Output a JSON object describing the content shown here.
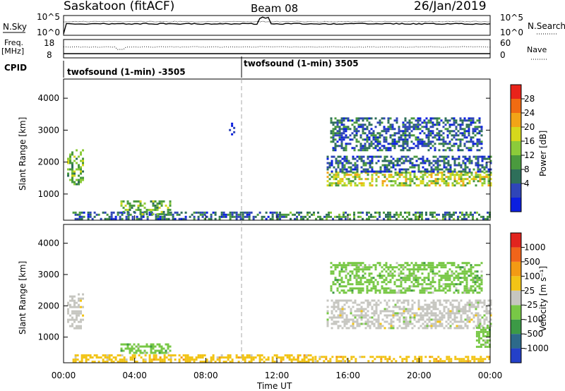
{
  "header": {
    "title": "Saskatoon (fitACF)",
    "beam": "Beam 08",
    "date": "26/Jan/2019"
  },
  "labels": {
    "nsky": "N.Sky",
    "nsearch": "N.Search",
    "freq": "Freq.",
    "freq_unit": "[MHz]",
    "nave": "Nave",
    "cpid": "CPID",
    "cpid1": "twofsound (1-min) -3505",
    "cpid2": "twofsound (1-min) 3505",
    "ylabel": "Slant Range [km]",
    "xlabel": "Time UT",
    "nsky_ticks": [
      "10^5",
      "10^0"
    ],
    "nsky_right_ticks": [
      "10^5",
      "10^0"
    ],
    "freq_ticks": [
      "18",
      "8"
    ],
    "nave_ticks": [
      "60",
      "0"
    ]
  },
  "colorbars": {
    "power": {
      "label": "Power [dB]",
      "ticks": [
        "28",
        "24",
        "20",
        "16",
        "12",
        "8",
        "4"
      ],
      "colors": [
        "#0b1fe0",
        "#2f45b8",
        "#2e6f5a",
        "#4a9a3e",
        "#8ccb3a",
        "#d6d81c",
        "#f2a417",
        "#f06b12",
        "#e9231a"
      ]
    },
    "velocity": {
      "label": "Velocity [m s⁻¹]",
      "ticks": [
        "1000",
        "500",
        "100",
        "25",
        "-25",
        "-100",
        "-500",
        "-1000"
      ],
      "colors": [
        "#2440c8",
        "#2d6a8a",
        "#3c9a46",
        "#78c846",
        "#c6c6c0",
        "#f2c416",
        "#f39a14",
        "#f0641a",
        "#e2241e"
      ]
    }
  },
  "chart_data": [
    {
      "type": "heatmap",
      "panel": "power",
      "xlabel": "Time UT",
      "ylabel": "Slant Range [km]",
      "xlim": [
        0,
        24
      ],
      "ylim": [
        180,
        4600
      ],
      "xticks": [
        "00:00",
        "04:00",
        "08:00",
        "12:00",
        "16:00",
        "20:00",
        "00:00"
      ],
      "yticks": [
        1000,
        2000,
        3000,
        4000
      ],
      "colorbar": "Power [dB]",
      "cpid_change_hour": 10.0,
      "regions": [
        {
          "t": [
            0.2,
            1.1
          ],
          "r": [
            1300,
            2400
          ],
          "power_db": 16
        },
        {
          "t": [
            0.5,
            12.0
          ],
          "r": [
            200,
            450
          ],
          "power_db": 10
        },
        {
          "t": [
            3.2,
            6.0
          ],
          "r": [
            350,
            800
          ],
          "power_db": 18
        },
        {
          "t": [
            12.0,
            24.0
          ],
          "r": [
            200,
            450
          ],
          "power_db": 14
        },
        {
          "t": [
            14.8,
            24.0
          ],
          "r": [
            1300,
            1700
          ],
          "power_db": 22
        },
        {
          "t": [
            14.8,
            24.0
          ],
          "r": [
            1700,
            2200
          ],
          "power_db": 8
        },
        {
          "t": [
            15.0,
            23.5
          ],
          "r": [
            2400,
            3400
          ],
          "power_db": 10
        },
        {
          "t": [
            9.3,
            9.6
          ],
          "r": [
            2900,
            3300
          ],
          "power_db": 6
        }
      ]
    },
    {
      "type": "heatmap",
      "panel": "velocity",
      "xlabel": "Time UT",
      "ylabel": "Slant Range [km]",
      "xlim": [
        0,
        24
      ],
      "ylim": [
        180,
        4600
      ],
      "xticks": [
        "00:00",
        "04:00",
        "08:00",
        "12:00",
        "16:00",
        "20:00",
        "00:00"
      ],
      "yticks": [
        1000,
        2000,
        3000,
        4000
      ],
      "colorbar": "Velocity [m s⁻¹]",
      "regions": [
        {
          "t": [
            0.2,
            1.1
          ],
          "r": [
            1300,
            2400
          ],
          "velocity": 0
        },
        {
          "t": [
            0.5,
            14.0
          ],
          "r": [
            200,
            450
          ],
          "velocity": -100
        },
        {
          "t": [
            3.2,
            6.0
          ],
          "r": [
            500,
            800
          ],
          "velocity": 200
        },
        {
          "t": [
            14.8,
            24.0
          ],
          "r": [
            1300,
            2200
          ],
          "velocity": 0
        },
        {
          "t": [
            14.0,
            24.0
          ],
          "r": [
            200,
            400
          ],
          "velocity": -50
        },
        {
          "t": [
            15.0,
            23.5
          ],
          "r": [
            2400,
            3400
          ],
          "velocity": 100
        },
        {
          "t": [
            23.2,
            24.0
          ],
          "r": [
            700,
            1400
          ],
          "velocity": 150
        }
      ]
    }
  ]
}
